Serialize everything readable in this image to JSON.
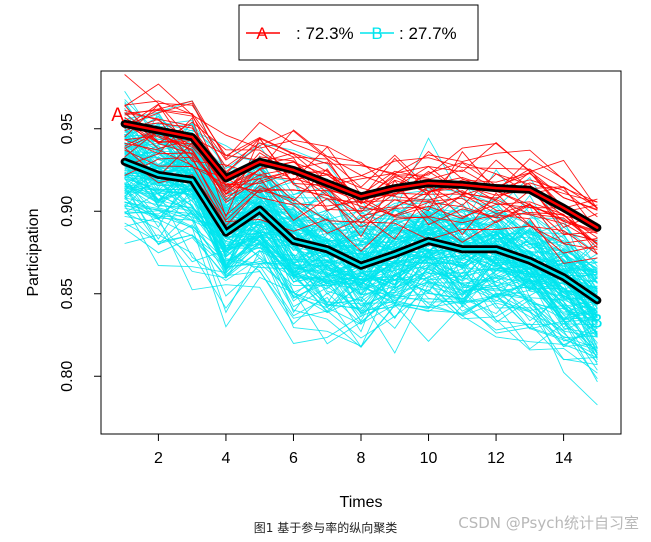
{
  "chart_data": {
    "type": "line",
    "xlabel": "Times",
    "ylabel": "Participation",
    "x": [
      1,
      2,
      3,
      4,
      5,
      6,
      7,
      8,
      9,
      10,
      11,
      12,
      13,
      14,
      15
    ],
    "xlim": [
      0.3,
      15.7
    ],
    "ylim": [
      0.765,
      0.985
    ],
    "xticks": [
      2,
      4,
      6,
      8,
      10,
      12,
      14
    ],
    "yticks": [
      0.8,
      0.85,
      0.9,
      0.95
    ],
    "ytick_labels": [
      "0.80",
      "0.85",
      "0.90",
      "0.95"
    ],
    "grid": false,
    "legend_position": "top-center",
    "legend": [
      {
        "key": "A",
        "label": ": 72.3%",
        "color": "#ff0000"
      },
      {
        "key": "B",
        "label": ": 27.7%",
        "color": "#00e5ee"
      }
    ],
    "series": [
      {
        "name": "A",
        "color": "#ff0000",
        "values": [
          0.953,
          0.949,
          0.945,
          0.92,
          0.93,
          0.925,
          0.917,
          0.909,
          0.914,
          0.917,
          0.916,
          0.914,
          0.913,
          0.902,
          0.89
        ]
      },
      {
        "name": "B",
        "color": "#00e5ee",
        "values": [
          0.93,
          0.922,
          0.919,
          0.887,
          0.901,
          0.882,
          0.877,
          0.867,
          0.874,
          0.882,
          0.877,
          0.877,
          0.87,
          0.86,
          0.846
        ]
      }
    ]
  },
  "caption": "图1 基于参与率的纵向聚类",
  "watermark": "CSDN @Psych统计自习室"
}
